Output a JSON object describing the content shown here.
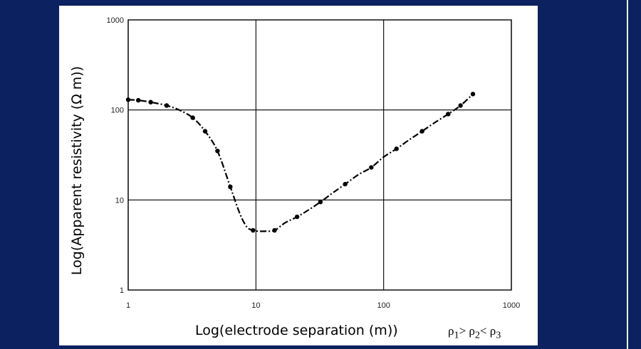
{
  "colors": {
    "background": "#0b2160",
    "panel": "#ffffff",
    "ink": "#000000"
  },
  "labels": {
    "ylabel": "Log(Apparent resistivity (Ω m))",
    "xlabel": "Log(electrode separation (m))",
    "relation": "ρ₁> ρ₂< ρ₃"
  },
  "chart_data": {
    "type": "line",
    "xscale": "log",
    "yscale": "log",
    "xlim": [
      1,
      1000
    ],
    "ylim": [
      1,
      1000
    ],
    "grid": true,
    "xticks": [
      "1",
      "10",
      "100",
      "1000"
    ],
    "yticks": [
      "1",
      "10",
      "100",
      "1000"
    ],
    "xlabel": "Log(electrode separation (m))",
    "ylabel": "Log(Apparent resistivity (Ω m))",
    "line_style": "dash-dot",
    "series": [
      {
        "x": [
          1.0,
          1.2,
          1.5,
          2.0,
          2.5,
          3.2,
          4.0,
          5.0,
          6.3,
          7.5,
          8.5,
          9.5,
          10.5,
          12.0,
          14.0,
          17.0,
          21.0,
          26.0,
          32.0,
          40.0,
          50.0,
          63.0,
          80.0,
          100.0,
          126.0,
          160.0,
          200.0,
          250.0,
          320.0,
          400.0,
          500.0
        ],
        "y": [
          130,
          128,
          122,
          112,
          100,
          82,
          58,
          35,
          14,
          7,
          5,
          4.6,
          4.5,
          4.5,
          4.6,
          5.6,
          6.5,
          7.8,
          9.5,
          12,
          15,
          19,
          23,
          30,
          37,
          47,
          58,
          72,
          90,
          112,
          150
        ]
      }
    ],
    "markers_x": [
      1.0,
      1.2,
      1.5,
      2.0,
      3.2,
      4.0,
      5.0,
      6.3,
      9.5,
      14.0,
      21.0,
      32.0,
      50.0,
      80.0,
      126.0,
      200.0,
      320.0,
      400.0,
      500.0
    ]
  }
}
